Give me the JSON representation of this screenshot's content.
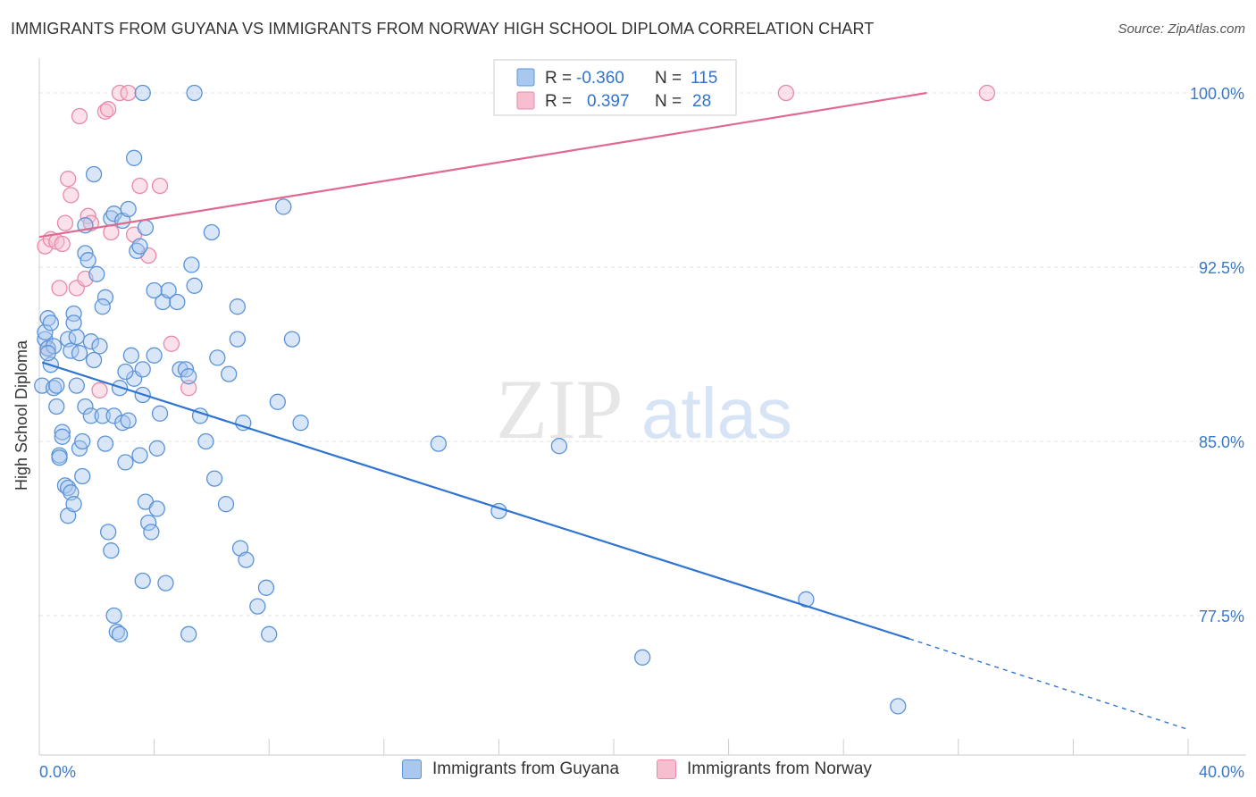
{
  "title": "IMMIGRANTS FROM GUYANA VS IMMIGRANTS FROM NORWAY HIGH SCHOOL DIPLOMA CORRELATION CHART",
  "source": "Source: ZipAtlas.com",
  "watermark": {
    "zip": "ZIP",
    "atlas": "atlas"
  },
  "colors": {
    "guyana_fill": "#a9c8f0",
    "guyana_stroke": "#5b93d8",
    "guyana_line": "#2f74d0",
    "norway_fill": "#f7bed0",
    "norway_stroke": "#e88aa8",
    "norway_line": "#e0698f",
    "axis_label": "#3a78c9",
    "grid": "#e3e3e3"
  },
  "legend": {
    "rows": [
      {
        "r_label": "R =",
        "r_value": "-0.360",
        "n_label": "N =",
        "n_value": "115"
      },
      {
        "r_label": "R =",
        "r_value": "0.397",
        "n_label": "N =",
        "n_value": "28"
      }
    ]
  },
  "bottom_legend": {
    "guyana": "Immigrants from Guyana",
    "norway": "Immigrants from Norway"
  },
  "chart_data": {
    "type": "scatter",
    "title": "IMMIGRANTS FROM GUYANA VS IMMIGRANTS FROM NORWAY HIGH SCHOOL DIPLOMA CORRELATION CHART",
    "xlabel": "",
    "ylabel": "High School Diploma",
    "xlim": [
      0,
      40
    ],
    "ylim": [
      71.5,
      101.5
    ],
    "x_tick_labels": [
      "0.0%",
      "40.0%"
    ],
    "y_ticks": [
      77.5,
      85.0,
      92.5,
      100.0
    ],
    "y_tick_labels": [
      "77.5%",
      "85.0%",
      "92.5%",
      "100.0%"
    ],
    "grid": true,
    "legend_position": "top-center",
    "series": [
      {
        "name": "Immigrants from Guyana",
        "r": -0.36,
        "n": 115,
        "trend": {
          "x0": 0.1,
          "y0": 88.4,
          "x1": 30.3,
          "y1": 76.5,
          "dash_to_x": 40,
          "dash_to_y": 72.6
        },
        "points": [
          [
            0.1,
            87.4
          ],
          [
            0.2,
            89.4
          ],
          [
            0.3,
            89.0
          ],
          [
            0.2,
            89.7
          ],
          [
            0.3,
            90.3
          ],
          [
            0.4,
            90.1
          ],
          [
            0.4,
            88.3
          ],
          [
            0.5,
            87.3
          ],
          [
            0.6,
            87.4
          ],
          [
            0.6,
            86.5
          ],
          [
            0.7,
            84.4
          ],
          [
            0.7,
            84.3
          ],
          [
            0.8,
            85.4
          ],
          [
            0.8,
            85.2
          ],
          [
            0.9,
            83.1
          ],
          [
            1.0,
            83.0
          ],
          [
            1.1,
            82.8
          ],
          [
            1.0,
            81.8
          ],
          [
            1.2,
            82.3
          ],
          [
            1.0,
            89.4
          ],
          [
            1.1,
            88.9
          ],
          [
            1.2,
            90.5
          ],
          [
            1.3,
            89.5
          ],
          [
            1.4,
            88.8
          ],
          [
            1.3,
            87.4
          ],
          [
            1.4,
            84.7
          ],
          [
            1.5,
            83.5
          ],
          [
            1.5,
            85.0
          ],
          [
            1.6,
            86.5
          ],
          [
            1.8,
            86.1
          ],
          [
            1.8,
            89.3
          ],
          [
            2.1,
            89.1
          ],
          [
            2.2,
            86.1
          ],
          [
            2.3,
            84.9
          ],
          [
            2.4,
            81.1
          ],
          [
            2.5,
            80.3
          ],
          [
            2.6,
            77.5
          ],
          [
            2.7,
            76.8
          ],
          [
            2.8,
            76.7
          ],
          [
            2.0,
            92.2
          ],
          [
            2.3,
            91.2
          ],
          [
            2.2,
            90.8
          ],
          [
            1.6,
            93.1
          ],
          [
            1.7,
            92.8
          ],
          [
            1.6,
            94.3
          ],
          [
            1.9,
            96.5
          ],
          [
            2.5,
            94.6
          ],
          [
            2.6,
            94.8
          ],
          [
            2.9,
            94.5
          ],
          [
            3.1,
            95.0
          ],
          [
            3.3,
            97.2
          ],
          [
            3.4,
            93.2
          ],
          [
            3.5,
            93.4
          ],
          [
            3.7,
            94.2
          ],
          [
            3.2,
            88.7
          ],
          [
            3.3,
            87.7
          ],
          [
            3.6,
            88.1
          ],
          [
            3.0,
            88.0
          ],
          [
            2.8,
            87.3
          ],
          [
            2.6,
            86.1
          ],
          [
            2.9,
            85.8
          ],
          [
            3.1,
            85.9
          ],
          [
            3.0,
            84.1
          ],
          [
            3.5,
            84.4
          ],
          [
            3.7,
            82.4
          ],
          [
            3.8,
            81.5
          ],
          [
            3.9,
            81.1
          ],
          [
            4.1,
            82.1
          ],
          [
            3.6,
            79.0
          ],
          [
            4.4,
            78.9
          ],
          [
            4.0,
            88.7
          ],
          [
            4.1,
            84.7
          ],
          [
            4.2,
            86.2
          ],
          [
            4.3,
            91.0
          ],
          [
            4.5,
            91.5
          ],
          [
            4.8,
            91.0
          ],
          [
            4.9,
            88.1
          ],
          [
            5.1,
            88.1
          ],
          [
            5.2,
            87.8
          ],
          [
            5.3,
            92.6
          ],
          [
            5.4,
            91.7
          ],
          [
            5.6,
            86.1
          ],
          [
            5.8,
            85.0
          ],
          [
            6.1,
            83.4
          ],
          [
            6.2,
            88.6
          ],
          [
            6.0,
            94.0
          ],
          [
            6.6,
            87.9
          ],
          [
            6.5,
            82.3
          ],
          [
            6.9,
            90.8
          ],
          [
            6.9,
            89.4
          ],
          [
            7.0,
            80.4
          ],
          [
            7.2,
            79.9
          ],
          [
            7.1,
            85.8
          ],
          [
            7.6,
            77.9
          ],
          [
            7.9,
            78.7
          ],
          [
            8.3,
            86.7
          ],
          [
            8.0,
            76.7
          ],
          [
            8.5,
            95.1
          ],
          [
            8.8,
            89.4
          ],
          [
            9.1,
            85.8
          ],
          [
            3.6,
            100.0
          ],
          [
            5.4,
            100.0
          ],
          [
            5.2,
            76.7
          ],
          [
            3.6,
            87.0
          ],
          [
            4.0,
            91.5
          ],
          [
            1.2,
            90.1
          ],
          [
            0.5,
            89.1
          ],
          [
            0.3,
            88.8
          ],
          [
            13.9,
            84.9
          ],
          [
            18.1,
            84.8
          ],
          [
            16.0,
            82.0
          ],
          [
            26.7,
            78.2
          ],
          [
            21.0,
            75.7
          ],
          [
            29.9,
            73.6
          ],
          [
            1.9,
            88.5
          ]
        ]
      },
      {
        "name": "Immigrants from Norway",
        "r": 0.397,
        "n": 28,
        "trend": {
          "x0": 0.0,
          "y0": 93.8,
          "x1": 30.9,
          "y1": 100.0
        },
        "points": [
          [
            0.2,
            93.4
          ],
          [
            0.4,
            93.7
          ],
          [
            0.6,
            93.6
          ],
          [
            0.7,
            91.6
          ],
          [
            0.8,
            93.5
          ],
          [
            0.9,
            94.4
          ],
          [
            1.0,
            96.3
          ],
          [
            1.1,
            95.6
          ],
          [
            1.3,
            91.6
          ],
          [
            1.4,
            99.0
          ],
          [
            1.6,
            92.0
          ],
          [
            1.7,
            94.7
          ],
          [
            1.8,
            94.4
          ],
          [
            2.1,
            87.2
          ],
          [
            2.3,
            99.2
          ],
          [
            2.4,
            99.3
          ],
          [
            2.5,
            94.0
          ],
          [
            2.8,
            100.0
          ],
          [
            3.1,
            100.0
          ],
          [
            3.3,
            93.9
          ],
          [
            3.5,
            96.0
          ],
          [
            3.8,
            93.0
          ],
          [
            4.2,
            96.0
          ],
          [
            4.6,
            89.2
          ],
          [
            5.2,
            87.3
          ],
          [
            26.0,
            100.0
          ],
          [
            33.0,
            100.0
          ],
          [
            0.3,
            89.0
          ]
        ]
      }
    ]
  }
}
